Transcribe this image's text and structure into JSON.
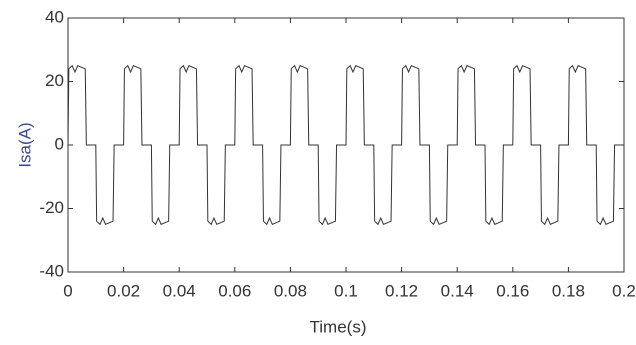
{
  "chart_data": {
    "type": "line",
    "xlabel": "Time(s)",
    "ylabel": "Isa(A)",
    "x": [
      0,
      0.0003,
      0.0015,
      0.0025,
      0.0035,
      0.0062,
      0.0066,
      0.01,
      0.0103,
      0.0115,
      0.0125,
      0.0135,
      0.0162,
      0.0166,
      0.02,
      0.0203,
      0.0215,
      0.0225,
      0.0235,
      0.0262,
      0.0266,
      0.03,
      0.0303,
      0.0315,
      0.0325,
      0.0335,
      0.0362,
      0.0366,
      0.04,
      0.0403,
      0.0415,
      0.0425,
      0.0435,
      0.0462,
      0.0466,
      0.05,
      0.0503,
      0.0515,
      0.0525,
      0.0535,
      0.0562,
      0.0566,
      0.06,
      0.0603,
      0.0615,
      0.0625,
      0.0635,
      0.0662,
      0.0666,
      0.07,
      0.0703,
      0.0715,
      0.0725,
      0.0735,
      0.0762,
      0.0766,
      0.08,
      0.0803,
      0.0815,
      0.0825,
      0.0835,
      0.0862,
      0.0866,
      0.09,
      0.0903,
      0.0915,
      0.0925,
      0.0935,
      0.0962,
      0.0966,
      0.1,
      0.1003,
      0.1015,
      0.1025,
      0.1035,
      0.1062,
      0.1066,
      0.11,
      0.1103,
      0.1115,
      0.1125,
      0.1135,
      0.1162,
      0.1166,
      0.12,
      0.1203,
      0.1215,
      0.1225,
      0.1235,
      0.1262,
      0.1266,
      0.13,
      0.1303,
      0.1315,
      0.1325,
      0.1335,
      0.1362,
      0.1366,
      0.14,
      0.1403,
      0.1415,
      0.1425,
      0.1435,
      0.1462,
      0.1466,
      0.15,
      0.1503,
      0.1515,
      0.1525,
      0.1535,
      0.1562,
      0.1566,
      0.16,
      0.1603,
      0.1615,
      0.1625,
      0.1635,
      0.1662,
      0.1666,
      0.17,
      0.1703,
      0.1715,
      0.1725,
      0.1735,
      0.1762,
      0.1766,
      0.18,
      0.1803,
      0.1815,
      0.1825,
      0.1835,
      0.1862,
      0.1866,
      0.19,
      0.1903,
      0.1915,
      0.1925,
      0.1935,
      0.1962,
      0.1966,
      0.2
    ],
    "series": [
      {
        "color": "#333333",
        "values": [
          0,
          24,
          25,
          23,
          25,
          24,
          0,
          0,
          -24,
          -25,
          -23,
          -25,
          -24,
          0,
          0,
          24,
          25,
          23,
          25,
          24,
          0,
          0,
          -24,
          -25,
          -23,
          -25,
          -24,
          0,
          0,
          24,
          25,
          23,
          25,
          24,
          0,
          0,
          -24,
          -25,
          -23,
          -25,
          -24,
          0,
          0,
          24,
          25,
          23,
          25,
          24,
          0,
          0,
          -24,
          -25,
          -23,
          -25,
          -24,
          0,
          0,
          24,
          25,
          23,
          25,
          24,
          0,
          0,
          -24,
          -25,
          -23,
          -25,
          -24,
          0,
          0,
          24,
          25,
          23,
          25,
          24,
          0,
          0,
          -24,
          -25,
          -23,
          -25,
          -24,
          0,
          0,
          24,
          25,
          23,
          25,
          24,
          0,
          0,
          -24,
          -25,
          -23,
          -25,
          -24,
          0,
          0,
          24,
          25,
          23,
          25,
          24,
          0,
          0,
          -24,
          -25,
          -23,
          -25,
          -24,
          0,
          0,
          24,
          25,
          23,
          25,
          24,
          0,
          0,
          -24,
          -25,
          -23,
          -25,
          -24,
          0,
          0,
          24,
          25,
          23,
          25,
          24,
          0,
          0,
          -24,
          -25,
          -23,
          -25,
          -24,
          0,
          0
        ]
      }
    ],
    "xlim": [
      0,
      0.2
    ],
    "xticks": [
      0,
      0.02,
      0.04,
      0.06,
      0.08,
      0.1,
      0.12,
      0.14,
      0.16,
      0.18,
      0.2
    ],
    "ylim": [
      -40,
      40
    ],
    "yticks": [
      -40,
      -20,
      0,
      20,
      40
    ]
  }
}
